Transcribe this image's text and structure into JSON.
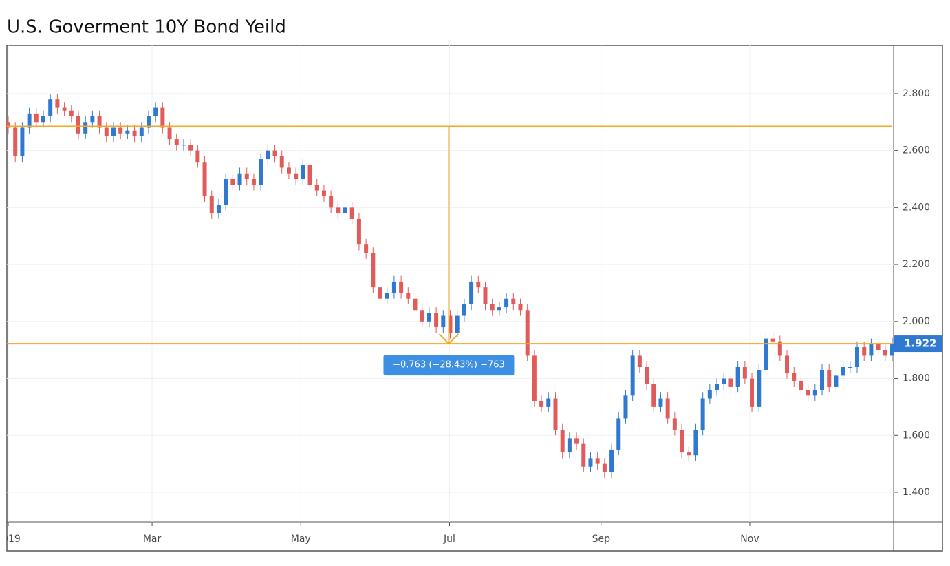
{
  "chart_data": {
    "type": "candlestick",
    "title": "U.S. Goverment 10Y Bond Yeild",
    "open": [
      2.7,
      2.68,
      2.58,
      2.68,
      2.73,
      2.7,
      2.72,
      2.78,
      2.75,
      2.74,
      2.72,
      2.66,
      2.7,
      2.72,
      2.68,
      2.65,
      2.68,
      2.66,
      2.67,
      2.65,
      2.68,
      2.72,
      2.75,
      2.68,
      2.64,
      2.62,
      2.62,
      2.6,
      2.56,
      2.44,
      2.38,
      2.41,
      2.5,
      2.48,
      2.52,
      2.5,
      2.48,
      2.57,
      2.6,
      2.58,
      2.54,
      2.52,
      2.5,
      2.55,
      2.48,
      2.46,
      2.44,
      2.4,
      2.38,
      2.4,
      2.36,
      2.27,
      2.24,
      2.12,
      2.08,
      2.1,
      2.14,
      2.1,
      2.08,
      2.04,
      2.0,
      2.03,
      1.98,
      2.02,
      1.96,
      2.02,
      2.06,
      2.14,
      2.12,
      2.06,
      2.04,
      2.05,
      2.08,
      2.06,
      2.04,
      1.88,
      1.72,
      1.7,
      1.73,
      1.62,
      1.54,
      1.59,
      1.57,
      1.49,
      1.52,
      1.5,
      1.47,
      1.55,
      1.66,
      1.74,
      1.88,
      1.84,
      1.78,
      1.7,
      1.73,
      1.66,
      1.62,
      1.54,
      1.53,
      1.62,
      1.73,
      1.76,
      1.78,
      1.8,
      1.77,
      1.84,
      1.8,
      1.7,
      1.83,
      1.94,
      1.93,
      1.88,
      1.82,
      1.79,
      1.76,
      1.74,
      1.76,
      1.83,
      1.77,
      1.81,
      1.84,
      1.84,
      1.91,
      1.88,
      1.92,
      1.9,
      1.88
    ],
    "high": [
      2.72,
      2.7,
      2.7,
      2.75,
      2.75,
      2.74,
      2.8,
      2.8,
      2.77,
      2.76,
      2.74,
      2.72,
      2.74,
      2.74,
      2.7,
      2.7,
      2.7,
      2.69,
      2.69,
      2.7,
      2.74,
      2.77,
      2.77,
      2.7,
      2.66,
      2.64,
      2.64,
      2.62,
      2.58,
      2.46,
      2.43,
      2.52,
      2.52,
      2.54,
      2.54,
      2.52,
      2.59,
      2.62,
      2.62,
      2.6,
      2.56,
      2.54,
      2.57,
      2.57,
      2.5,
      2.48,
      2.46,
      2.42,
      2.42,
      2.42,
      2.38,
      2.29,
      2.26,
      2.14,
      2.12,
      2.16,
      2.16,
      2.12,
      2.1,
      2.06,
      2.05,
      2.05,
      2.04,
      2.04,
      2.04,
      2.08,
      2.16,
      2.16,
      2.14,
      2.08,
      2.07,
      2.1,
      2.1,
      2.08,
      2.06,
      1.9,
      1.74,
      1.75,
      1.75,
      1.64,
      1.61,
      1.61,
      1.59,
      1.54,
      1.54,
      1.52,
      1.57,
      1.68,
      1.76,
      1.9,
      1.9,
      1.86,
      1.8,
      1.75,
      1.75,
      1.68,
      1.64,
      1.56,
      1.64,
      1.75,
      1.78,
      1.8,
      1.82,
      1.82,
      1.86,
      1.86,
      1.82,
      1.85,
      1.96,
      1.96,
      1.95,
      1.9,
      1.84,
      1.81,
      1.78,
      1.78,
      1.85,
      1.85,
      1.83,
      1.86,
      1.86,
      1.93,
      1.93,
      1.94,
      1.94,
      1.92,
      1.942
    ],
    "low": [
      2.66,
      2.56,
      2.56,
      2.66,
      2.68,
      2.68,
      2.7,
      2.73,
      2.72,
      2.7,
      2.64,
      2.64,
      2.68,
      2.66,
      2.63,
      2.63,
      2.64,
      2.64,
      2.63,
      2.63,
      2.66,
      2.7,
      2.66,
      2.62,
      2.6,
      2.6,
      2.58,
      2.54,
      2.42,
      2.36,
      2.36,
      2.39,
      2.46,
      2.46,
      2.48,
      2.46,
      2.46,
      2.55,
      2.56,
      2.52,
      2.5,
      2.48,
      2.48,
      2.46,
      2.44,
      2.42,
      2.38,
      2.36,
      2.36,
      2.34,
      2.25,
      2.22,
      2.1,
      2.06,
      2.06,
      2.08,
      2.08,
      2.06,
      2.02,
      1.98,
      1.98,
      1.96,
      1.96,
      1.94,
      1.94,
      2.0,
      2.04,
      2.1,
      2.04,
      2.02,
      2.02,
      2.03,
      2.04,
      2.02,
      1.86,
      1.7,
      1.68,
      1.68,
      1.6,
      1.52,
      1.52,
      1.55,
      1.47,
      1.47,
      1.48,
      1.45,
      1.45,
      1.53,
      1.64,
      1.72,
      1.82,
      1.76,
      1.68,
      1.68,
      1.64,
      1.6,
      1.52,
      1.51,
      1.51,
      1.6,
      1.71,
      1.74,
      1.76,
      1.75,
      1.75,
      1.78,
      1.68,
      1.68,
      1.81,
      1.91,
      1.86,
      1.8,
      1.77,
      1.74,
      1.72,
      1.72,
      1.74,
      1.75,
      1.75,
      1.79,
      1.82,
      1.82,
      1.86,
      1.86,
      1.88,
      1.86,
      1.86
    ],
    "close": [
      2.68,
      2.58,
      2.68,
      2.73,
      2.7,
      2.72,
      2.78,
      2.75,
      2.74,
      2.72,
      2.66,
      2.7,
      2.72,
      2.68,
      2.65,
      2.68,
      2.66,
      2.67,
      2.65,
      2.68,
      2.72,
      2.75,
      2.68,
      2.64,
      2.62,
      2.62,
      2.6,
      2.56,
      2.44,
      2.38,
      2.41,
      2.5,
      2.48,
      2.52,
      2.5,
      2.48,
      2.57,
      2.6,
      2.58,
      2.54,
      2.52,
      2.5,
      2.55,
      2.48,
      2.46,
      2.44,
      2.4,
      2.38,
      2.4,
      2.36,
      2.27,
      2.24,
      2.12,
      2.08,
      2.1,
      2.14,
      2.1,
      2.08,
      2.04,
      2.0,
      2.03,
      1.98,
      2.02,
      1.96,
      2.02,
      2.06,
      2.14,
      2.12,
      2.06,
      2.04,
      2.05,
      2.08,
      2.06,
      2.04,
      1.88,
      1.72,
      1.7,
      1.73,
      1.62,
      1.54,
      1.59,
      1.57,
      1.49,
      1.52,
      1.5,
      1.47,
      1.55,
      1.66,
      1.74,
      1.88,
      1.84,
      1.78,
      1.7,
      1.73,
      1.66,
      1.62,
      1.54,
      1.53,
      1.62,
      1.73,
      1.76,
      1.78,
      1.8,
      1.77,
      1.84,
      1.8,
      1.7,
      1.83,
      1.94,
      1.93,
      1.88,
      1.82,
      1.79,
      1.76,
      1.74,
      1.76,
      1.83,
      1.77,
      1.81,
      1.84,
      1.84,
      1.91,
      1.88,
      1.92,
      1.9,
      1.88,
      1.922
    ],
    "up_color": "#2f7ad0",
    "down_color": "#e15b5b",
    "xlim": [
      0,
      126
    ],
    "xticks": [
      {
        "value": 0,
        "label": "2019"
      },
      {
        "value": 20.5,
        "label": "Mar"
      },
      {
        "value": 41.7,
        "label": "May"
      },
      {
        "value": 62.9,
        "label": "Jul"
      },
      {
        "value": 84.5,
        "label": "Sep"
      },
      {
        "value": 105.7,
        "label": "Nov"
      }
    ],
    "ylim": [
      1.296,
      2.969
    ],
    "yticks": [
      {
        "value": 1.4,
        "label": "1.400"
      },
      {
        "value": 1.6,
        "label": "1.600"
      },
      {
        "value": 1.8,
        "label": "1.800"
      },
      {
        "value": 2.0,
        "label": "2.000"
      },
      {
        "value": 2.2,
        "label": "2.200"
      },
      {
        "value": 2.4,
        "label": "2.400"
      },
      {
        "value": 2.6,
        "label": "2.600"
      },
      {
        "value": 2.8,
        "label": "2.800"
      }
    ],
    "grid": true,
    "measure": {
      "from": 2.685,
      "to": 1.922,
      "x": 62.8,
      "label": "−0.763 (−28.43%) −763",
      "color": "#f5a623"
    },
    "last_price": 1.922
  }
}
